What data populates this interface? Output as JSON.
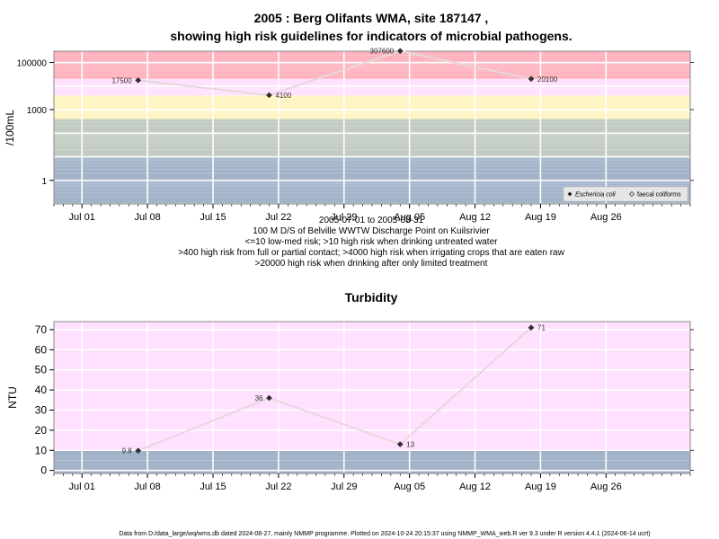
{
  "header": {
    "title_line1": "2005 : Berg Olifants WMA, site 187147 ,",
    "title_line2": "showing high risk guidelines for indicators of microbial pathogens."
  },
  "caption": {
    "date_range": "2005-07-01 to 2005-08-31",
    "location": "100 M D/S of Belville WWTW Discharge Point on Kuilsrivier",
    "guide1": "<=10 low-med risk; >10 high risk when drinking untreated water",
    "guide2": ">400 high risk from full or partial contact; >4000 high risk when irrigating crops that are eaten raw",
    "guide3": ">20000 high risk when drinking after only limited treatment"
  },
  "footer": {
    "text": "Data from D:/data_large/wq/wms.db dated 2024-08-27, mainly NMMP programme. Plotted on 2024-10-24 20:15:37 using NMMP_WMA_web.R ver 9.3 under R version 4.4.1 (2024-06-14 ucrt)"
  },
  "colors": {
    "band_red": "#FFB3BF",
    "band_pink": "#FFE0FF",
    "band_yellow": "#FFF5C2",
    "band_grey": "#C2CCC2",
    "band_blue": "#A3B3C9",
    "line": "#E4D8DC",
    "point": "#333333"
  },
  "chart_data": [
    {
      "type": "line",
      "title": "",
      "ylabel": "/100mL",
      "y_scale": "log10",
      "ylim": [
        0.1,
        300000
      ],
      "y_ticks": [
        1,
        1000,
        100000
      ],
      "y_tick_labels": [
        "1",
        "1000",
        "100000"
      ],
      "x_type": "date",
      "xlim": [
        "2005-06-28",
        "2005-09-04"
      ],
      "x_ticks": [
        "2005-07-01",
        "2005-07-08",
        "2005-07-15",
        "2005-07-22",
        "2005-07-29",
        "2005-08-05",
        "2005-08-12",
        "2005-08-19",
        "2005-08-26"
      ],
      "x_tick_labels": [
        "Jul 01",
        "Jul 08",
        "Jul 15",
        "Jul 22",
        "Jul 29",
        "Aug 05",
        "Aug 12",
        "Aug 19",
        "Aug 26"
      ],
      "risk_bands": [
        {
          "from": 0.1,
          "to": 10,
          "color": "#A3B3C9"
        },
        {
          "from": 10,
          "to": 400,
          "color": "#C2CCC2"
        },
        {
          "from": 400,
          "to": 4000,
          "color": "#FFF5C2"
        },
        {
          "from": 4000,
          "to": 20000,
          "color": "#FFE0FF"
        },
        {
          "from": 20000,
          "to": 300000,
          "color": "#FFB3BF"
        }
      ],
      "series": [
        {
          "name": "Eschericia coli",
          "marker": "filled-diamond",
          "x": [
            "2005-07-07",
            "2005-07-21",
            "2005-08-04",
            "2005-08-18"
          ],
          "y": [
            17500,
            4100,
            307600,
            20100
          ],
          "labels": [
            "17500",
            "4100",
            "307600",
            "20100"
          ]
        },
        {
          "name": "faecal coliforms",
          "marker": "open-diamond",
          "x": [],
          "y": []
        }
      ],
      "legend": {
        "position": "bottom-right",
        "entries": [
          "Eschericia coli",
          "faecal coliforms"
        ]
      },
      "grid": true
    },
    {
      "type": "line",
      "title": "Turbidity",
      "ylabel": "NTU",
      "ylim": [
        -1.5,
        74
      ],
      "y_ticks": [
        0,
        10,
        20,
        30,
        40,
        50,
        60,
        70
      ],
      "y_tick_labels": [
        "0",
        "10",
        "20",
        "30",
        "40",
        "50",
        "60",
        "70"
      ],
      "x_type": "date",
      "xlim": [
        "2005-06-28",
        "2005-09-04"
      ],
      "x_ticks": [
        "2005-07-01",
        "2005-07-08",
        "2005-07-15",
        "2005-07-22",
        "2005-07-29",
        "2005-08-05",
        "2005-08-12",
        "2005-08-19",
        "2005-08-26"
      ],
      "x_tick_labels": [
        "Jul 01",
        "Jul 08",
        "Jul 15",
        "Jul 22",
        "Jul 29",
        "Aug 05",
        "Aug 12",
        "Aug 19",
        "Aug 26"
      ],
      "risk_bands": [
        {
          "from": -1.5,
          "to": 10,
          "color": "#A3B3C9"
        },
        {
          "from": 10,
          "to": 74,
          "color": "#FFE0FF"
        }
      ],
      "series": [
        {
          "name": "",
          "marker": "filled-diamond",
          "x": [
            "2005-07-07",
            "2005-07-21",
            "2005-08-04",
            "2005-08-18"
          ],
          "y": [
            9.8,
            36,
            13,
            71
          ],
          "labels": [
            "9.8",
            "36",
            "13",
            "71"
          ]
        }
      ],
      "grid": true
    }
  ]
}
